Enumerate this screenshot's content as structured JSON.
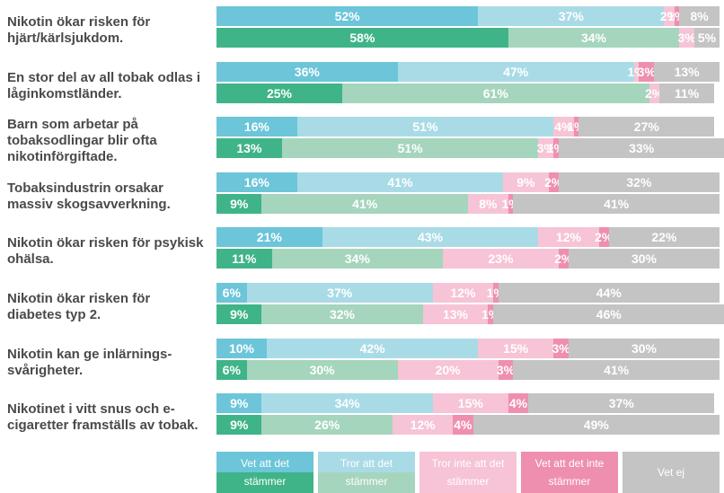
{
  "chart_data": {
    "type": "paired-stacked-bar",
    "xlim": [
      0,
      100
    ],
    "categories": [
      "Nikotin ökar risken för hjärt/kärlsjukdom.",
      "En stor del av all tobak odlas i låginkomstländer.",
      "Barn som arbetar på tobaksodlingar blir ofta nikotinförgiftade.",
      "Tobaksindustrin orsakar massiv skogsavverkning.",
      "Nikotin ökar risken för psykisk ohälsa.",
      "Nikotin ökar risken för diabetes typ 2.",
      "Nikotin kan ge inlärnings-svårigheter.",
      "Nikotinet i vitt snus och e-cigaretter framställs av tobak."
    ],
    "series": [
      {
        "name": "Vet att det stämmer",
        "colors": [
          "#6cc5d9",
          "#3fb488"
        ],
        "values": [
          [
            52,
            58
          ],
          [
            36,
            25
          ],
          [
            16,
            13
          ],
          [
            16,
            9
          ],
          [
            21,
            11
          ],
          [
            6,
            9
          ],
          [
            10,
            6
          ],
          [
            9,
            9
          ]
        ],
        "value_labels": [
          [
            "52%",
            "58%"
          ],
          [
            "36%",
            "25%"
          ],
          [
            "16%",
            "13%"
          ],
          [
            "16%",
            "9%"
          ],
          [
            "21%",
            "11%"
          ],
          [
            "6%",
            "9%"
          ],
          [
            "10%",
            "6%"
          ],
          [
            "9%",
            "9%"
          ]
        ]
      },
      {
        "name": "Tror att det stämmer",
        "colors": [
          "#a9dbe7",
          "#a5d5bc"
        ],
        "values": [
          [
            37,
            34
          ],
          [
            47,
            61
          ],
          [
            51,
            51
          ],
          [
            41,
            41
          ],
          [
            43,
            34
          ],
          [
            37,
            32
          ],
          [
            42,
            30
          ],
          [
            34,
            26
          ]
        ],
        "value_labels": [
          [
            "37%",
            "34%"
          ],
          [
            "47%",
            "61%"
          ],
          [
            "51%",
            "51%"
          ],
          [
            "41%",
            "41%"
          ],
          [
            "43%",
            "34%"
          ],
          [
            "37%",
            "32%"
          ],
          [
            "42%",
            "30%"
          ],
          [
            "34%",
            "26%"
          ]
        ]
      },
      {
        "name": "Tror inte att det stämmer",
        "colors": [
          "#f6c4d6",
          "#f6c4d6"
        ],
        "values": [
          [
            2,
            3
          ],
          [
            1,
            2
          ],
          [
            4,
            3
          ],
          [
            9,
            8
          ],
          [
            12,
            23
          ],
          [
            12,
            13
          ],
          [
            15,
            20
          ],
          [
            15,
            12
          ]
        ],
        "value_labels": [
          [
            "2%",
            "3%"
          ],
          [
            "1%",
            "2%"
          ],
          [
            "4%",
            "3%"
          ],
          [
            "9%",
            "8%"
          ],
          [
            "12%",
            "23%"
          ],
          [
            "12%",
            "13%"
          ],
          [
            "15%",
            "20%"
          ],
          [
            "15%",
            "12%"
          ]
        ]
      },
      {
        "name": "Vet att det inte stämmer",
        "colors": [
          "#ee8fb0",
          "#ee8fb0"
        ],
        "values": [
          [
            1,
            0
          ],
          [
            3,
            0
          ],
          [
            1,
            1
          ],
          [
            2,
            1
          ],
          [
            2,
            2
          ],
          [
            1,
            1
          ],
          [
            3,
            3
          ],
          [
            4,
            4
          ]
        ],
        "value_labels": [
          [
            "1%",
            null
          ],
          [
            "3%",
            null
          ],
          [
            "1%",
            "1%"
          ],
          [
            "2%",
            "1%"
          ],
          [
            "2%",
            "2%"
          ],
          [
            "1%",
            "1%"
          ],
          [
            "3%",
            "3%"
          ],
          [
            "4%",
            "4%"
          ]
        ]
      },
      {
        "name": "Vet ej",
        "colors": [
          "#c4c4c4",
          "#c4c4c4"
        ],
        "values": [
          [
            8,
            5
          ],
          [
            13,
            11
          ],
          [
            27,
            33
          ],
          [
            32,
            41
          ],
          [
            22,
            30
          ],
          [
            44,
            46
          ],
          [
            30,
            41
          ],
          [
            37,
            49
          ]
        ],
        "value_labels": [
          [
            "8%",
            "5%"
          ],
          [
            "13%",
            "11%"
          ],
          [
            "27%",
            "33%"
          ],
          [
            "32%",
            "41%"
          ],
          [
            "22%",
            "30%"
          ],
          [
            "44%",
            "46%"
          ],
          [
            "30%",
            "41%"
          ],
          [
            "37%",
            "49%"
          ]
        ]
      }
    ]
  }
}
